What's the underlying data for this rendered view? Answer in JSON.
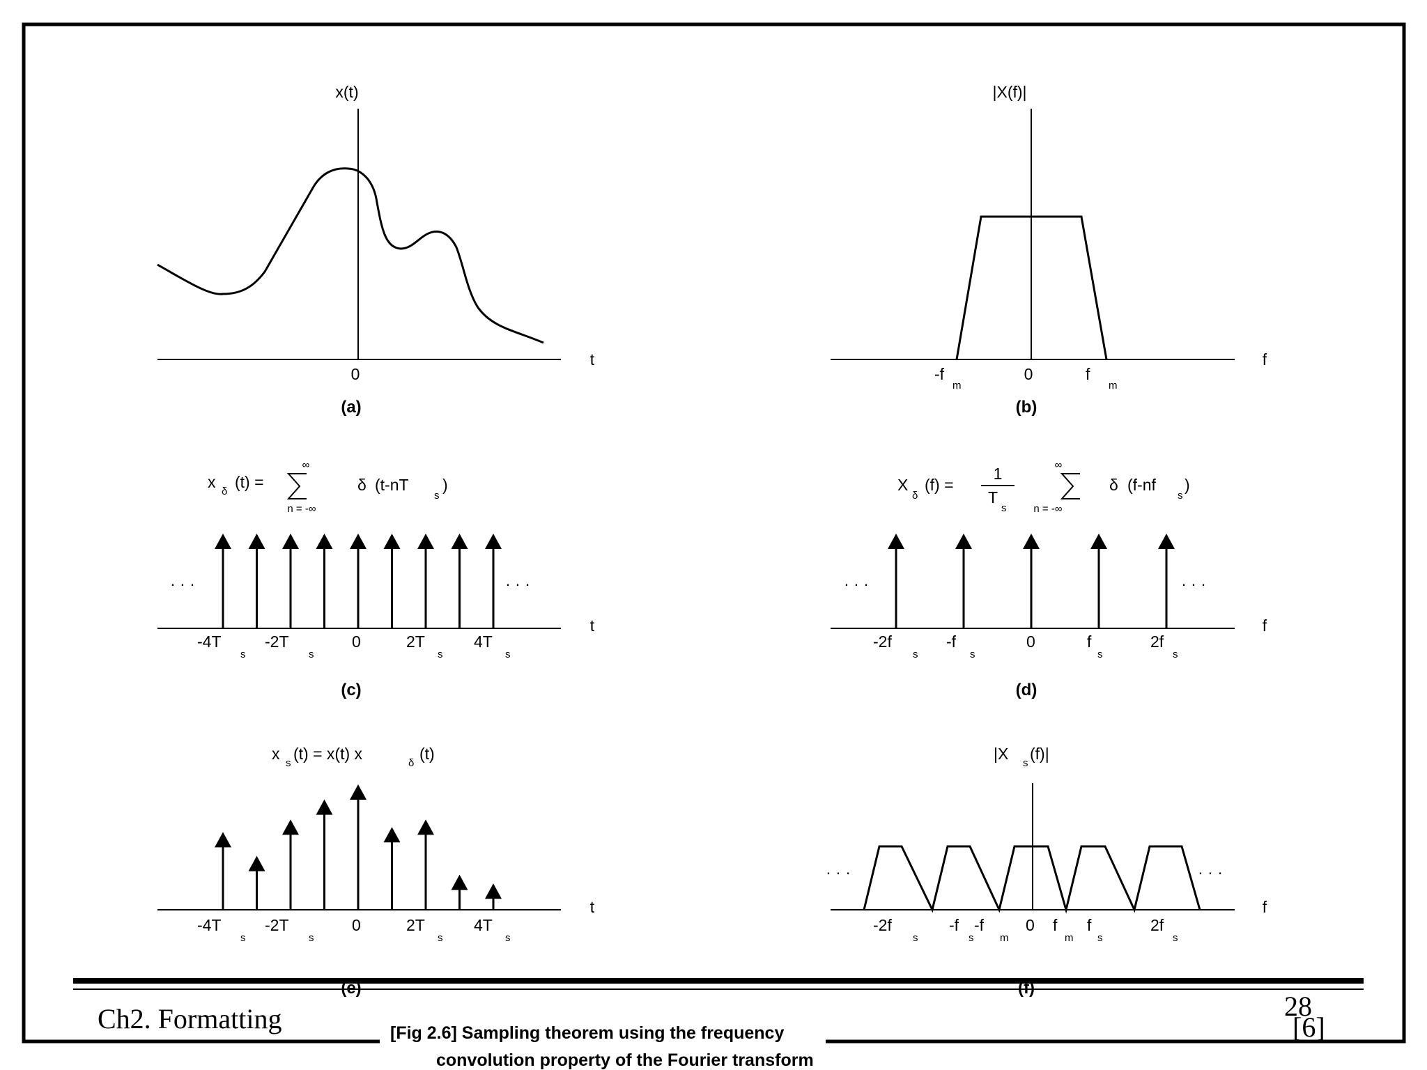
{
  "footer": {
    "chapter": "Ch2. Formatting",
    "page_number": "28",
    "reference": "[6]",
    "caption_line1": "[Fig 2.6] Sampling theorem using the frequency",
    "caption_line2": "convolution property of the Fourier transform"
  },
  "panel_a": {
    "label": "(a)",
    "ylabel": "x(t)",
    "xlabel": "t",
    "origin": "0"
  },
  "panel_b": {
    "label": "(b)",
    "ylabel": "|X(f)|",
    "xlabel": "f",
    "origin": "0",
    "ticks": [
      {
        "main": "-f",
        "sub": "m"
      },
      {
        "main": "f",
        "sub": "m"
      }
    ]
  },
  "panel_c": {
    "label": "(c)",
    "xlabel": "t",
    "ellipsis": "· · ·",
    "formula": {
      "lhs": "x",
      "lhs_sub": "δ",
      "lhs_arg": "(t) =",
      "sum_top": "∞",
      "sum_bottom": "n = -∞",
      "delta": "δ",
      "arg": "(t-nT",
      "arg_sub": "s",
      "close": ")"
    },
    "ticks": [
      {
        "main": "-4T",
        "sub": "s"
      },
      {
        "main": "-2T",
        "sub": "s"
      },
      {
        "main": "0",
        "sub": ""
      },
      {
        "main": "2T",
        "sub": "s"
      },
      {
        "main": "4T",
        "sub": "s"
      }
    ],
    "impulse_positions": [
      -4,
      -3,
      -2,
      -1,
      0,
      1,
      2,
      3,
      4
    ]
  },
  "panel_d": {
    "label": "(d)",
    "xlabel": "f",
    "ellipsis": "· · ·",
    "formula": {
      "lhs": "X",
      "lhs_sub": "δ",
      "lhs_arg": "(f) =",
      "frac_num": "1",
      "frac_den": "T",
      "frac_den_sub": "s",
      "sum_top": "∞",
      "sum_bottom": "n = -∞",
      "delta": "δ",
      "arg": "(f-nf",
      "arg_sub": "s",
      "close": ")"
    },
    "ticks": [
      {
        "main": "-2f",
        "sub": "s"
      },
      {
        "main": "-f",
        "sub": "s"
      },
      {
        "main": "0",
        "sub": ""
      },
      {
        "main": "f",
        "sub": "s"
      },
      {
        "main": "2f",
        "sub": "s"
      }
    ],
    "impulse_positions": [
      -2,
      -1,
      0,
      1,
      2
    ]
  },
  "panel_e": {
    "label": "(e)",
    "xlabel": "t",
    "formula": {
      "lhs": "x",
      "lhs_sub": "s",
      "mid": "(t) = x(t) x",
      "rhs_sub": "δ",
      "rhs": "(t)"
    },
    "ticks": [
      {
        "main": "-4T",
        "sub": "s"
      },
      {
        "main": "-2T",
        "sub": "s"
      },
      {
        "main": "0",
        "sub": ""
      },
      {
        "main": "2T",
        "sub": "s"
      },
      {
        "main": "4T",
        "sub": "s"
      }
    ],
    "samples": [
      {
        "n": -4,
        "h": 0.52
      },
      {
        "n": -3,
        "h": 0.33
      },
      {
        "n": -2,
        "h": 0.62
      },
      {
        "n": -1,
        "h": 0.78
      },
      {
        "n": 0,
        "h": 0.9
      },
      {
        "n": 1,
        "h": 0.56
      },
      {
        "n": 2,
        "h": 0.62
      },
      {
        "n": 3,
        "h": 0.18
      },
      {
        "n": 4,
        "h": 0.11
      }
    ]
  },
  "panel_f": {
    "label": "(f)",
    "xlabel": "f",
    "ellipsis": "· · ·",
    "ylabel_main": "|X",
    "ylabel_sub": "s",
    "ylabel_rest": "(f)|",
    "ticks": [
      {
        "main": "-2f",
        "sub": "s"
      },
      {
        "main": "-f",
        "sub": "s"
      },
      {
        "main": "-f",
        "sub": "m"
      },
      {
        "main": "0",
        "sub": ""
      },
      {
        "main": "f",
        "sub": "m"
      },
      {
        "main": "f",
        "sub": "s"
      },
      {
        "main": "2f",
        "sub": "s"
      }
    ]
  }
}
